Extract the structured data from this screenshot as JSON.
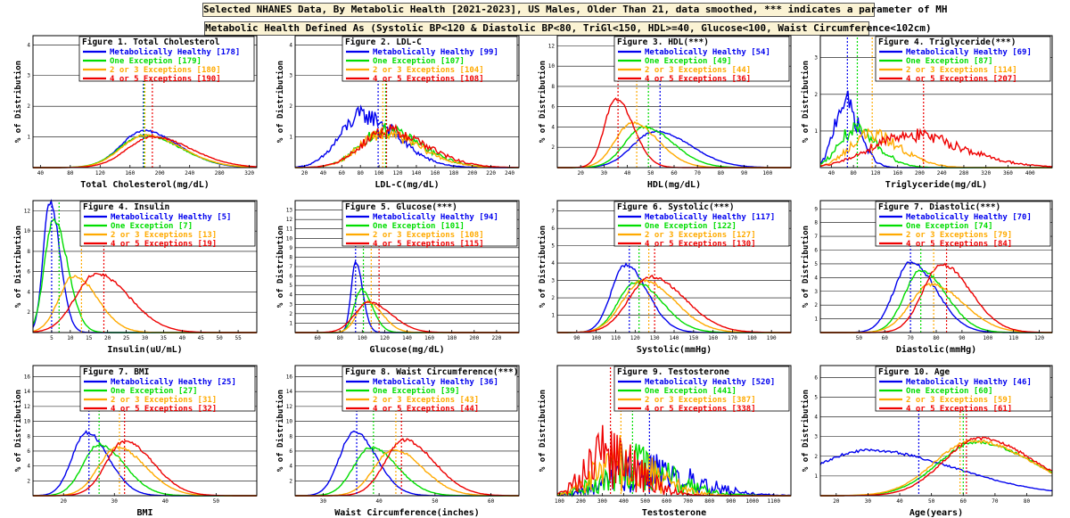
{
  "header": {
    "title": "Selected NHANES Data, By Metabolic Health [2021-2023], US Males, Older Than 21, data smoothed, *** indicates a parameter of MH",
    "definition": "Metabolic Health Defined As (Systolic BP<120 & Diastolic BP<80, TriGl<150, HDL>=40, Glucose<100, Waist Circumference<102cm)"
  },
  "colors": {
    "blue": "#0000ee",
    "green": "#00dd00",
    "orange": "#ffaa00",
    "red": "#ee0000"
  },
  "y_axis_label": "% of Distribution",
  "chart_data": [
    {
      "type": "line",
      "title": "Figure 1. Total Cholesterol",
      "xlabel": "Total Cholesterol(mg/dL)",
      "xlim": [
        30,
        330
      ],
      "ylim": [
        0,
        4.3
      ],
      "xticks": [
        40,
        80,
        120,
        160,
        200,
        240,
        280,
        320
      ],
      "yticks": [
        1,
        2,
        3,
        4
      ],
      "grid": [
        1,
        2,
        3,
        4
      ],
      "legend_side": "left",
      "series": [
        {
          "name": "Metabolically Healthy [178]",
          "color": "#0000ee",
          "peak_x": 178,
          "peak_y": 1.2,
          "spread": 38,
          "mean": 178
        },
        {
          "name": "One Exception [179]",
          "color": "#00dd00",
          "peak_x": 178,
          "peak_y": 1.05,
          "spread": 40,
          "mean": 179
        },
        {
          "name": "2 or 3 Exceptions [180]",
          "color": "#ffaa00",
          "peak_x": 180,
          "peak_y": 1.05,
          "spread": 40,
          "mean": 180
        },
        {
          "name": "4 or 5 Exceptions [190]",
          "color": "#ee0000",
          "peak_x": 190,
          "peak_y": 1.0,
          "spread": 42,
          "mean": 190
        }
      ]
    },
    {
      "type": "line",
      "title": "Figure 2. LDL-C",
      "xlabel": "LDL-C(mg/dL)",
      "xlim": [
        10,
        250
      ],
      "ylim": [
        0,
        4.3
      ],
      "xticks": [
        20,
        40,
        60,
        80,
        100,
        120,
        140,
        160,
        180,
        200,
        220,
        240
      ],
      "yticks": [
        1,
        2,
        3,
        4
      ],
      "grid": [
        1,
        2,
        3,
        4
      ],
      "legend_side": "right",
      "series": [
        {
          "name": "Metabolically Healthy [99]",
          "color": "#0000ee",
          "peak_x": 82,
          "peak_y": 1.7,
          "spread": 30,
          "mean": 99
        },
        {
          "name": "One Exception [107]",
          "color": "#00dd00",
          "peak_x": 105,
          "peak_y": 1.2,
          "spread": 32,
          "mean": 107
        },
        {
          "name": "2 or 3 Exceptions [104]",
          "color": "#ffaa00",
          "peak_x": 104,
          "peak_y": 1.1,
          "spread": 32,
          "mean": 104
        },
        {
          "name": "4 or 5 Exceptions [108]",
          "color": "#ee0000",
          "peak_x": 108,
          "peak_y": 1.2,
          "spread": 34,
          "mean": 108
        }
      ]
    },
    {
      "type": "line",
      "title": "Figure 3. HDL(***)",
      "xlabel": "HDL(mg/dL)",
      "xlim": [
        10,
        110
      ],
      "ylim": [
        0,
        13
      ],
      "xticks": [
        20,
        30,
        40,
        50,
        60,
        70,
        80,
        90,
        100
      ],
      "yticks": [
        2,
        4,
        6,
        8,
        10,
        12
      ],
      "grid": [
        2,
        4,
        6,
        8,
        10,
        12
      ],
      "legend_side": "right",
      "series": [
        {
          "name": "Metabolically Healthy [54]",
          "color": "#0000ee",
          "peak_x": 52,
          "peak_y": 3.6,
          "spread": 12,
          "mean": 54
        },
        {
          "name": "One Exception [49]",
          "color": "#00dd00",
          "peak_x": 47,
          "peak_y": 4.0,
          "spread": 10,
          "mean": 49
        },
        {
          "name": "2 or 3 Exceptions [44]",
          "color": "#ffaa00",
          "peak_x": 42,
          "peak_y": 4.4,
          "spread": 9,
          "mean": 44
        },
        {
          "name": "4 or 5 Exceptions [36]",
          "color": "#ee0000",
          "peak_x": 35,
          "peak_y": 6.8,
          "spread": 6,
          "mean": 36
        }
      ]
    },
    {
      "type": "line",
      "title": "Figure 4. Triglyceride(***)",
      "xlabel": "Triglyceride(mg/dL)",
      "xlim": [
        20,
        440
      ],
      "ylim": [
        0,
        3.6
      ],
      "xticks": [
        40,
        80,
        120,
        160,
        200,
        240,
        280,
        320,
        360,
        400
      ],
      "yticks": [
        1,
        2,
        3
      ],
      "grid": [
        1,
        2,
        3
      ],
      "legend_side": "right",
      "series": [
        {
          "name": "Metabolically Healthy [69]",
          "color": "#0000ee",
          "peak_x": 62,
          "peak_y": 1.8,
          "spread": 22,
          "mean": 69
        },
        {
          "name": "One Exception [87]",
          "color": "#00dd00",
          "peak_x": 80,
          "peak_y": 1.0,
          "spread": 35,
          "mean": 87
        },
        {
          "name": "2 or 3 Exceptions [114]",
          "color": "#ffaa00",
          "peak_x": 108,
          "peak_y": 0.9,
          "spread": 45,
          "mean": 114
        },
        {
          "name": "4 or 5 Exceptions [207]",
          "color": "#ee0000",
          "peak_x": 175,
          "peak_y": 0.9,
          "spread": 80,
          "mean": 207
        }
      ]
    },
    {
      "type": "line",
      "title": "Figure 4. Insulin",
      "xlabel": "Insulin(uU/mL)",
      "xlim": [
        0,
        60
      ],
      "ylim": [
        0,
        13
      ],
      "xticks": [
        5,
        10,
        15,
        20,
        25,
        30,
        35,
        40,
        45,
        50,
        55
      ],
      "yticks": [
        2,
        4,
        6,
        8,
        10,
        12
      ],
      "grid": [
        2,
        4,
        6,
        8,
        10,
        12
      ],
      "legend_side": "right",
      "series": [
        {
          "name": "Metabolically Healthy [5]",
          "color": "#0000ee",
          "peak_x": 4.5,
          "peak_y": 12.9,
          "spread": 2.2,
          "mean": 5
        },
        {
          "name": "One Exception [7]",
          "color": "#00dd00",
          "peak_x": 5.5,
          "peak_y": 11.2,
          "spread": 3,
          "mean": 7
        },
        {
          "name": "2 or 3 Exceptions [13]",
          "color": "#ffaa00",
          "peak_x": 11,
          "peak_y": 5.6,
          "spread": 5,
          "mean": 13
        },
        {
          "name": "4 or 5 Exceptions [19]",
          "color": "#ee0000",
          "peak_x": 17,
          "peak_y": 5.8,
          "spread": 7,
          "mean": 19
        }
      ]
    },
    {
      "type": "line",
      "title": "Figure 5. Glucose(***)",
      "xlabel": "Glucose(mg/dL)",
      "xlim": [
        40,
        240
      ],
      "ylim": [
        0,
        14
      ],
      "xticks": [
        60,
        80,
        100,
        120,
        140,
        160,
        180,
        200,
        220
      ],
      "yticks": [
        1,
        2,
        3,
        4,
        5,
        6,
        7,
        8,
        9,
        10,
        11,
        12,
        13
      ],
      "grid": [
        1,
        2,
        3,
        4,
        5,
        6,
        7,
        8,
        9,
        10,
        11,
        12,
        13
      ],
      "legend_side": "right",
      "series": [
        {
          "name": "Metabolically Healthy [94]",
          "color": "#0000ee",
          "peak_x": 94,
          "peak_y": 7.5,
          "spread": 5,
          "mean": 94
        },
        {
          "name": "One Exception [101]",
          "color": "#00dd00",
          "peak_x": 99,
          "peak_y": 4.5,
          "spread": 8,
          "mean": 101
        },
        {
          "name": "2 or 3 Exceptions [108]",
          "color": "#ffaa00",
          "peak_x": 104,
          "peak_y": 3.3,
          "spread": 11,
          "mean": 108
        },
        {
          "name": "4 or 5 Exceptions [115]",
          "color": "#ee0000",
          "peak_x": 106,
          "peak_y": 3.2,
          "spread": 16,
          "mean": 115
        }
      ]
    },
    {
      "type": "line",
      "title": "Figure 6. Systolic(***)",
      "xlabel": "Systolic(mmHg)",
      "xlim": [
        80,
        200
      ],
      "ylim": [
        0,
        7.6
      ],
      "xticks": [
        90,
        100,
        110,
        120,
        130,
        140,
        150,
        160,
        170,
        180,
        190
      ],
      "yticks": [
        1,
        2,
        3,
        4,
        5,
        6,
        7
      ],
      "grid": [
        1,
        2,
        3,
        4,
        5,
        6,
        7
      ],
      "legend_side": "right",
      "series": [
        {
          "name": "Metabolically Healthy [117]",
          "color": "#0000ee",
          "peak_x": 115,
          "peak_y": 3.9,
          "spread": 9,
          "mean": 117
        },
        {
          "name": "One Exception [122]",
          "color": "#00dd00",
          "peak_x": 120,
          "peak_y": 2.9,
          "spread": 11,
          "mean": 122
        },
        {
          "name": "2 or 3 Exceptions [127]",
          "color": "#ffaa00",
          "peak_x": 124,
          "peak_y": 3.0,
          "spread": 13,
          "mean": 127
        },
        {
          "name": "4 or 5 Exceptions [130]",
          "color": "#ee0000",
          "peak_x": 128,
          "peak_y": 3.2,
          "spread": 14,
          "mean": 130
        }
      ]
    },
    {
      "type": "line",
      "title": "Figure 7. Diastolic(***)",
      "xlabel": "Diastolic(mmHg)",
      "xlim": [
        35,
        125
      ],
      "ylim": [
        0,
        9.6
      ],
      "xticks": [
        50,
        60,
        70,
        80,
        90,
        100,
        110,
        120
      ],
      "yticks": [
        1,
        2,
        3,
        4,
        5,
        6,
        7,
        8,
        9
      ],
      "grid": [
        1,
        2,
        3,
        4,
        5,
        6,
        7,
        8,
        9
      ],
      "legend_side": "right",
      "series": [
        {
          "name": "Metabolically Healthy [70]",
          "color": "#0000ee",
          "peak_x": 70,
          "peak_y": 5.1,
          "spread": 8,
          "mean": 70
        },
        {
          "name": "One Exception [74]",
          "color": "#00dd00",
          "peak_x": 74,
          "peak_y": 4.5,
          "spread": 8,
          "mean": 74
        },
        {
          "name": "2 or 3 Exceptions [79]",
          "color": "#ffaa00",
          "peak_x": 78,
          "peak_y": 3.5,
          "spread": 10,
          "mean": 79
        },
        {
          "name": "4 or 5 Exceptions [84]",
          "color": "#ee0000",
          "peak_x": 82,
          "peak_y": 5.0,
          "spread": 9,
          "mean": 84
        }
      ]
    },
    {
      "type": "line",
      "title": "Figure 7. BMI",
      "xlabel": "BMI",
      "xlim": [
        14,
        58
      ],
      "ylim": [
        0,
        17.5
      ],
      "xticks": [
        20,
        30,
        40,
        50
      ],
      "yticks": [
        2,
        4,
        6,
        8,
        10,
        12,
        14,
        16
      ],
      "grid": [
        2,
        4,
        6,
        8,
        10,
        12,
        14,
        16
      ],
      "legend_side": "right",
      "series": [
        {
          "name": "Metabolically Healthy [25]",
          "color": "#0000ee",
          "peak_x": 24.5,
          "peak_y": 8.5,
          "spread": 3.5,
          "mean": 25
        },
        {
          "name": "One Exception [27]",
          "color": "#00dd00",
          "peak_x": 27,
          "peak_y": 6.9,
          "spread": 4,
          "mean": 27
        },
        {
          "name": "2 or 3 Exceptions [31]",
          "color": "#ffaa00",
          "peak_x": 30.5,
          "peak_y": 6.5,
          "spread": 4.5,
          "mean": 31
        },
        {
          "name": "4 or 5 Exceptions [32]",
          "color": "#ee0000",
          "peak_x": 32,
          "peak_y": 7.3,
          "spread": 4.5,
          "mean": 32
        }
      ]
    },
    {
      "type": "line",
      "title": "Figure 8. Waist Circumference(***)",
      "xlabel": "Waist Circumference(inches)",
      "xlim": [
        25,
        65
      ],
      "ylim": [
        0,
        17.5
      ],
      "xticks": [
        30,
        40,
        50,
        60
      ],
      "yticks": [
        2,
        4,
        6,
        8,
        10,
        12,
        14,
        16
      ],
      "grid": [
        2,
        4,
        6,
        8,
        10,
        12,
        14,
        16
      ],
      "legend_side": "right",
      "series": [
        {
          "name": "Metabolically Healthy [36]",
          "color": "#0000ee",
          "peak_x": 35.5,
          "peak_y": 8.6,
          "spread": 3.2,
          "mean": 36
        },
        {
          "name": "One Exception [39]",
          "color": "#00dd00",
          "peak_x": 38.5,
          "peak_y": 6.5,
          "spread": 3.8,
          "mean": 39
        },
        {
          "name": "2 or 3 Exceptions [43]",
          "color": "#ffaa00",
          "peak_x": 42.5,
          "peak_y": 6.2,
          "spread": 4.2,
          "mean": 43
        },
        {
          "name": "4 or 5 Exceptions [44]",
          "color": "#ee0000",
          "peak_x": 44.5,
          "peak_y": 7.5,
          "spread": 4.3,
          "mean": 44
        }
      ]
    },
    {
      "type": "line",
      "title": "Figure 9. Testosterone",
      "xlabel": "Testosterone",
      "xlim": [
        90,
        1180
      ],
      "ylim": [
        0,
        12
      ],
      "xticks": [
        100,
        200,
        300,
        400,
        500,
        600,
        700,
        800,
        900,
        1000,
        1100
      ],
      "yticks": [],
      "grid": [],
      "legend_side": "right",
      "series": [
        {
          "name": "Metabolically Healthy [520]",
          "color": "#0000ee",
          "peak_x": 480,
          "peak_y": 2.2,
          "spread": 190,
          "mean": 520
        },
        {
          "name": "One Exception [441]",
          "color": "#00dd00",
          "peak_x": 420,
          "peak_y": 2.6,
          "spread": 160,
          "mean": 441
        },
        {
          "name": "2 or 3 Exceptions [387]",
          "color": "#ffaa00",
          "peak_x": 370,
          "peak_y": 3.0,
          "spread": 140,
          "mean": 387
        },
        {
          "name": "4 or 5 Exceptions [338]",
          "color": "#ee0000",
          "peak_x": 320,
          "peak_y": 3.6,
          "spread": 120,
          "mean": 338
        }
      ]
    },
    {
      "type": "line",
      "title": "Figure 10. Age",
      "xlabel": "Age(years)",
      "xlim": [
        15,
        88
      ],
      "ylim": [
        0,
        6.6
      ],
      "xticks": [
        20,
        30,
        40,
        50,
        60,
        70,
        80
      ],
      "yticks": [
        1,
        2,
        3,
        4,
        5,
        6
      ],
      "grid": [
        1,
        2,
        3,
        4,
        5,
        6
      ],
      "legend_side": "right",
      "series": [
        {
          "name": "Metabolically Healthy [46]",
          "color": "#0000ee",
          "peak_x": 30,
          "peak_y": 2.3,
          "spread": 22,
          "mean": 46
        },
        {
          "name": "One Exception [60]",
          "color": "#00dd00",
          "peak_x": 64,
          "peak_y": 2.7,
          "spread": 15,
          "mean": 60
        },
        {
          "name": "2 or 3 Exceptions [59]",
          "color": "#ffaa00",
          "peak_x": 63,
          "peak_y": 2.8,
          "spread": 15,
          "mean": 59
        },
        {
          "name": "4 or 5 Exceptions [61]",
          "color": "#ee0000",
          "peak_x": 65,
          "peak_y": 2.9,
          "spread": 14,
          "mean": 61
        }
      ]
    }
  ]
}
